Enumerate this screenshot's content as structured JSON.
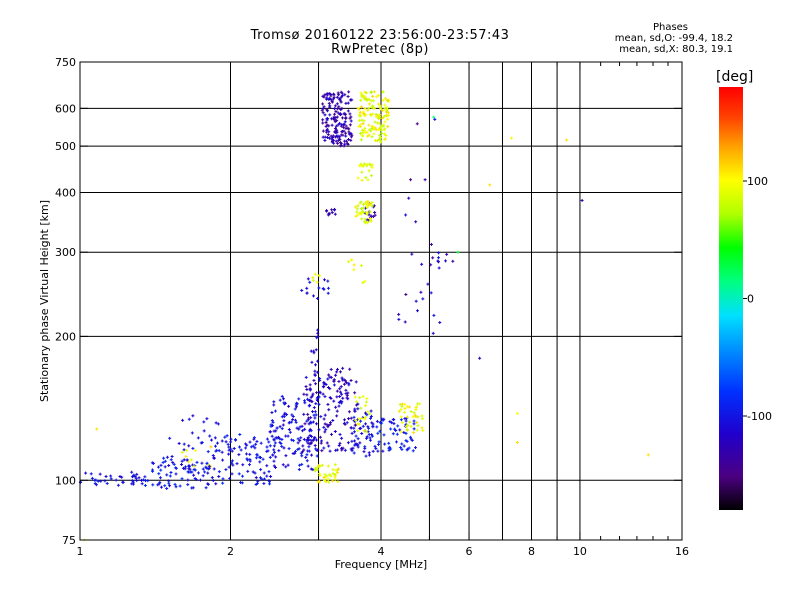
{
  "title_line1": "Tromsø 20160122 23:56:00-23:57:43",
  "title_line2": "RwPretec (8p)",
  "phases": {
    "heading": "Phases",
    "line1": "mean, sd,O: -99.4, 18.2",
    "line2": "mean, sd,X:  80.3, 19.1"
  },
  "colorbar": {
    "unit": "[deg]",
    "range": [
      -180,
      180
    ],
    "ticks": [
      {
        "value": 100,
        "label": "100"
      },
      {
        "value": 0,
        "label": "0"
      },
      {
        "value": -100,
        "label": "-100"
      }
    ]
  },
  "chart_data": {
    "type": "scatter",
    "xlabel": "Frequency [MHz]",
    "ylabel": "Stationary phase Virtual Height [km]",
    "x_scale": "log",
    "y_scale": "log",
    "xlim": [
      1,
      16
    ],
    "ylim": [
      75,
      750
    ],
    "x_ticks": [
      {
        "value": 1,
        "label": "1"
      },
      {
        "value": 2,
        "label": "2"
      },
      {
        "value": 4,
        "label": "4"
      },
      {
        "value": 6,
        "label": "6"
      },
      {
        "value": 8,
        "label": "8"
      },
      {
        "value": 10,
        "label": "10"
      },
      {
        "value": 16,
        "label": "16"
      }
    ],
    "x_minor_ticks": [
      3,
      5,
      7,
      9,
      11,
      12,
      13,
      14,
      15
    ],
    "y_ticks": [
      {
        "value": 75,
        "label": "75"
      },
      {
        "value": 100,
        "label": "100"
      },
      {
        "value": 200,
        "label": "200"
      },
      {
        "value": 300,
        "label": "300"
      },
      {
        "value": 400,
        "label": "400"
      },
      {
        "value": 500,
        "label": "500"
      },
      {
        "value": 600,
        "label": "600"
      },
      {
        "value": 750,
        "label": "750"
      }
    ],
    "x_gridlines": [
      2,
      3,
      4,
      5,
      6,
      7,
      8,
      9,
      10
    ],
    "y_gridlines": [
      100,
      200,
      300,
      400,
      500,
      600
    ],
    "grid": true,
    "color_encoding": "phase in degrees",
    "clusters": [
      {
        "f": [
          1.0,
          1.35
        ],
        "h": [
          97,
          104
        ],
        "phase": [
          -115,
          -90
        ],
        "n": 40
      },
      {
        "f": [
          1.35,
          1.8
        ],
        "h": [
          96,
          112
        ],
        "phase": [
          -115,
          -80
        ],
        "n": 70
      },
      {
        "f": [
          1.5,
          1.9
        ],
        "h": [
          103,
          140
        ],
        "phase": [
          -120,
          -90
        ],
        "n": 35
      },
      {
        "f": [
          1.6,
          1.85
        ],
        "h": [
          104,
          118
        ],
        "phase": [
          80,
          120
        ],
        "n": 10
      },
      {
        "f": [
          1.8,
          2.45
        ],
        "h": [
          98,
          125
        ],
        "phase": [
          -115,
          -85
        ],
        "n": 110
      },
      {
        "f": [
          2.4,
          3.0
        ],
        "h": [
          105,
          150
        ],
        "phase": [
          -120,
          -90
        ],
        "n": 140
      },
      {
        "f": [
          2.95,
          3.3
        ],
        "h": [
          99,
          108
        ],
        "phase": [
          75,
          115
        ],
        "n": 40
      },
      {
        "f": [
          2.8,
          3.6
        ],
        "h": [
          115,
          165
        ],
        "phase": [
          -140,
          -95
        ],
        "n": 150
      },
      {
        "f": [
          3.0,
          3.5
        ],
        "h": [
          150,
          172
        ],
        "phase": [
          -145,
          -115
        ],
        "n": 20
      },
      {
        "f": [
          2.9,
          3.0
        ],
        "h": [
          165,
          210
        ],
        "phase": [
          -130,
          -100
        ],
        "n": 15
      },
      {
        "f": [
          3.5,
          3.9
        ],
        "h": [
          112,
          140
        ],
        "phase": [
          -115,
          -90
        ],
        "n": 50
      },
      {
        "f": [
          3.55,
          3.8
        ],
        "h": [
          125,
          150
        ],
        "phase": [
          75,
          110
        ],
        "n": 20
      },
      {
        "f": [
          3.9,
          4.7
        ],
        "h": [
          115,
          135
        ],
        "phase": [
          -110,
          -80
        ],
        "n": 60
      },
      {
        "f": [
          4.35,
          4.85
        ],
        "h": [
          125,
          145
        ],
        "phase": [
          75,
          115
        ],
        "n": 40
      },
      {
        "f": [
          2.75,
          3.15
        ],
        "h": [
          240,
          265
        ],
        "phase": [
          -120,
          -95
        ],
        "n": 15
      },
      {
        "f": [
          2.75,
          3.05
        ],
        "h": [
          255,
          270
        ],
        "phase": [
          80,
          110
        ],
        "n": 6
      },
      {
        "f": [
          3.4,
          3.75
        ],
        "h": [
          255,
          290
        ],
        "phase": [
          80,
          115
        ],
        "n": 8
      },
      {
        "f": [
          3.1,
          3.25
        ],
        "h": [
          358,
          370
        ],
        "phase": [
          -140,
          -115
        ],
        "n": 10
      },
      {
        "f": [
          3.7,
          3.9
        ],
        "h": [
          335,
          380
        ],
        "phase": [
          -140,
          -110
        ],
        "n": 15
      },
      {
        "f": [
          3.55,
          3.85
        ],
        "h": [
          345,
          385
        ],
        "phase": [
          70,
          110
        ],
        "n": 40
      },
      {
        "f": [
          3.6,
          3.85
        ],
        "h": [
          420,
          460
        ],
        "phase": [
          75,
          110
        ],
        "n": 20
      },
      {
        "f": [
          3.05,
          3.5
        ],
        "h": [
          500,
          650
        ],
        "phase": [
          -150,
          -110
        ],
        "n": 170
      },
      {
        "f": [
          3.6,
          4.15
        ],
        "h": [
          510,
          650
        ],
        "phase": [
          70,
          115
        ],
        "n": 140
      },
      {
        "f": [
          4.3,
          5.3
        ],
        "h": [
          200,
          600
        ],
        "phase": [
          -150,
          -100
        ],
        "n": 25
      },
      {
        "f": [
          5.0,
          5.6
        ],
        "h": [
          280,
          300
        ],
        "phase": [
          -140,
          -100
        ],
        "n": 8
      }
    ],
    "isolated_points": [
      {
        "f": 5.7,
        "h": 300,
        "phase": 30
      },
      {
        "f": 6.3,
        "h": 180,
        "phase": -120
      },
      {
        "f": 6.6,
        "h": 415,
        "phase": 110
      },
      {
        "f": 7.3,
        "h": 520,
        "phase": 105
      },
      {
        "f": 7.5,
        "h": 138,
        "phase": 100
      },
      {
        "f": 7.5,
        "h": 120,
        "phase": 110
      },
      {
        "f": 9.4,
        "h": 515,
        "phase": 110
      },
      {
        "f": 10.1,
        "h": 385,
        "phase": -130
      },
      {
        "f": 13.7,
        "h": 113,
        "phase": 110
      },
      {
        "f": 1.08,
        "h": 128,
        "phase": 110
      },
      {
        "f": 1.02,
        "h": 75,
        "phase": 90
      },
      {
        "f": 2.25,
        "h": 98,
        "phase": -100
      },
      {
        "f": 5.1,
        "h": 575,
        "phase": 15
      }
    ]
  }
}
